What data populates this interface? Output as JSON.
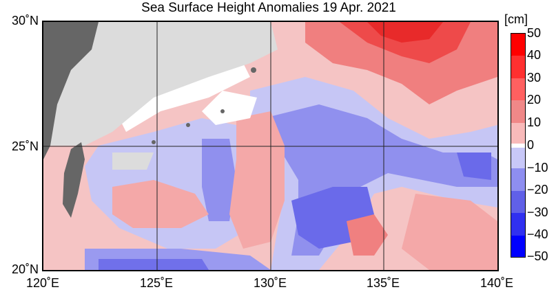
{
  "title": "Sea Surface Height Anomalies  19 Apr. 2021",
  "map": {
    "lat_labels": [
      "30˚N",
      "25˚N",
      "20˚N"
    ],
    "lon_labels": [
      "120˚E",
      "125˚E",
      "130˚E",
      "135˚E",
      "140˚E"
    ],
    "lat_range": [
      20,
      30
    ],
    "lon_range": [
      120,
      140
    ],
    "land_color": "#666666",
    "nodata_color": "#dcdcdc"
  },
  "colorbar": {
    "unit": "[cm]",
    "ticks": [
      "50",
      "40",
      "30",
      "20",
      "10",
      "0",
      "−10",
      "−20",
      "−30",
      "−40",
      "−50"
    ],
    "colors": [
      "#ff0000",
      "#ff3030",
      "#ff6060",
      "#f08888",
      "#f8baba",
      "#ffffff",
      "#c8c8f8",
      "#8e8ef0",
      "#6060e8",
      "#3030f0",
      "#0000ff"
    ]
  }
}
